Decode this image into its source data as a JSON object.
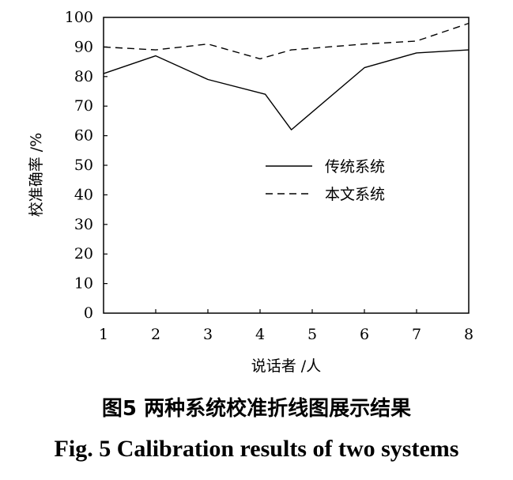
{
  "chart_data": {
    "type": "line",
    "x": [
      1,
      2,
      3,
      4,
      4.6,
      5,
      6,
      7,
      8
    ],
    "xticks": [
      "1",
      "2",
      "3",
      "4",
      "5",
      "6",
      "7",
      "8"
    ],
    "xlim": [
      1,
      8
    ],
    "ylim": [
      0,
      100
    ],
    "yticks": [
      "0",
      "10",
      "20",
      "30",
      "40",
      "50",
      "60",
      "70",
      "80",
      "90",
      "100"
    ],
    "xlabel": "说话者 /人",
    "ylabel": "校准确率 /%",
    "grid": false,
    "legend_position": "center-right",
    "series": [
      {
        "name": "传统系统",
        "style": "solid",
        "x": [
          1,
          2,
          3,
          4.1,
          4.6,
          6,
          7,
          8
        ],
        "values": [
          81,
          87,
          79,
          74,
          62,
          83,
          88,
          89
        ]
      },
      {
        "name": "本文系统",
        "style": "dashed",
        "x": [
          1,
          2,
          3,
          4,
          4.6,
          6,
          7,
          8
        ],
        "values": [
          90,
          89,
          91,
          86,
          89,
          91,
          92,
          98
        ]
      }
    ]
  },
  "caption": {
    "chinese": "图5  两种系统校准折线图展示结果",
    "english": "Fig. 5  Calibration results of two systems"
  },
  "colors": {
    "line": "#000000",
    "background": "#ffffff"
  }
}
